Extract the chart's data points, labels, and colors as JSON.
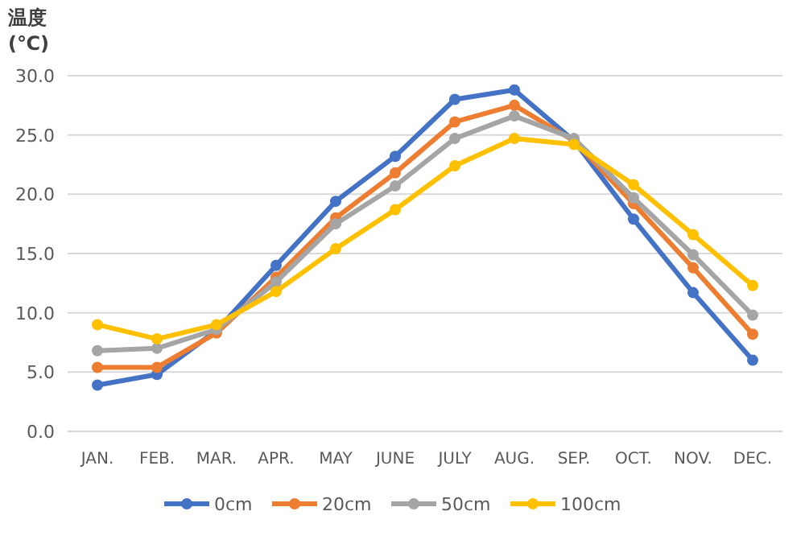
{
  "chart_data": {
    "type": "line",
    "ylabel": "温度\n(℃)",
    "categories": [
      "JAN.",
      "FEB.",
      "MAR.",
      "APR.",
      "MAY",
      "JUNE",
      "JULY",
      "AUG.",
      "SEP.",
      "OCT.",
      "NOV.",
      "DEC."
    ],
    "series": [
      {
        "name": "0cm",
        "color": "#4472c4",
        "values": [
          3.9,
          4.8,
          8.5,
          14.0,
          19.4,
          23.2,
          28.0,
          28.8,
          24.5,
          17.9,
          11.7,
          6.0
        ]
      },
      {
        "name": "20cm",
        "color": "#ed7d31",
        "values": [
          5.4,
          5.4,
          8.3,
          13.0,
          18.0,
          21.8,
          26.1,
          27.5,
          24.5,
          19.2,
          13.8,
          8.2
        ]
      },
      {
        "name": "50cm",
        "color": "#a5a5a5",
        "values": [
          6.8,
          7.0,
          8.6,
          12.6,
          17.5,
          20.7,
          24.7,
          26.6,
          24.7,
          19.7,
          14.9,
          9.8
        ]
      },
      {
        "name": "100cm",
        "color": "#ffc000",
        "values": [
          9.0,
          7.8,
          9.0,
          11.8,
          15.4,
          18.7,
          22.4,
          24.7,
          24.2,
          20.8,
          16.6,
          12.3
        ]
      }
    ],
    "ylim": [
      0,
      30
    ],
    "yticks": [
      {
        "value": 0,
        "label": "0.0"
      },
      {
        "value": 5,
        "label": "5.0"
      },
      {
        "value": 10,
        "label": "10.0"
      },
      {
        "value": 15,
        "label": "15.0"
      },
      {
        "value": 20,
        "label": "20.0"
      },
      {
        "value": 25,
        "label": "25.0"
      },
      {
        "value": 30,
        "label": "30.0"
      }
    ],
    "grid": "y",
    "legend": "bottom",
    "marker": "circle",
    "line_style": "solid"
  }
}
